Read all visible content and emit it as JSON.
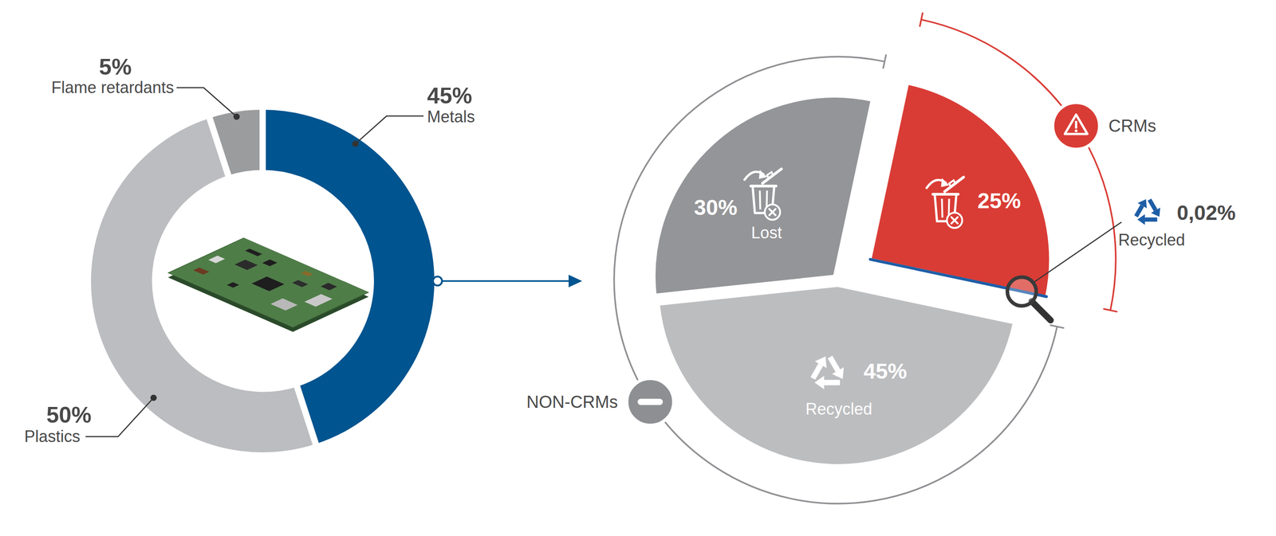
{
  "chart_data": [
    {
      "type": "donut",
      "categories": [
        "Metals",
        "Plastics",
        "Flame retardants"
      ],
      "values": [
        45,
        50,
        5
      ],
      "value_labels": [
        "45%",
        "50%",
        "5%"
      ],
      "colors": [
        "#00548f",
        "#bcbdc0",
        "#9b9c9e"
      ],
      "data_labels": true
    },
    {
      "type": "pie",
      "categories": [
        null,
        "Recycled",
        "Lost"
      ],
      "values": [
        25,
        45,
        30
      ],
      "value_labels": [
        "25%",
        "45%",
        "30%"
      ],
      "colors": [
        "#d93c35",
        "#bcbdbf",
        "#949598"
      ],
      "data_labels": true,
      "groups": [
        {
          "label": "CRMs",
          "slices": [
            0
          ],
          "color": "#d93c35"
        },
        {
          "label": "NON-CRMs",
          "slices": [
            1,
            2
          ],
          "color": "#8e8f92"
        }
      ],
      "callout": {
        "label": "Recycled",
        "value": 0.02,
        "value_label": "0,02%",
        "color": "#1e5ea6"
      }
    }
  ]
}
